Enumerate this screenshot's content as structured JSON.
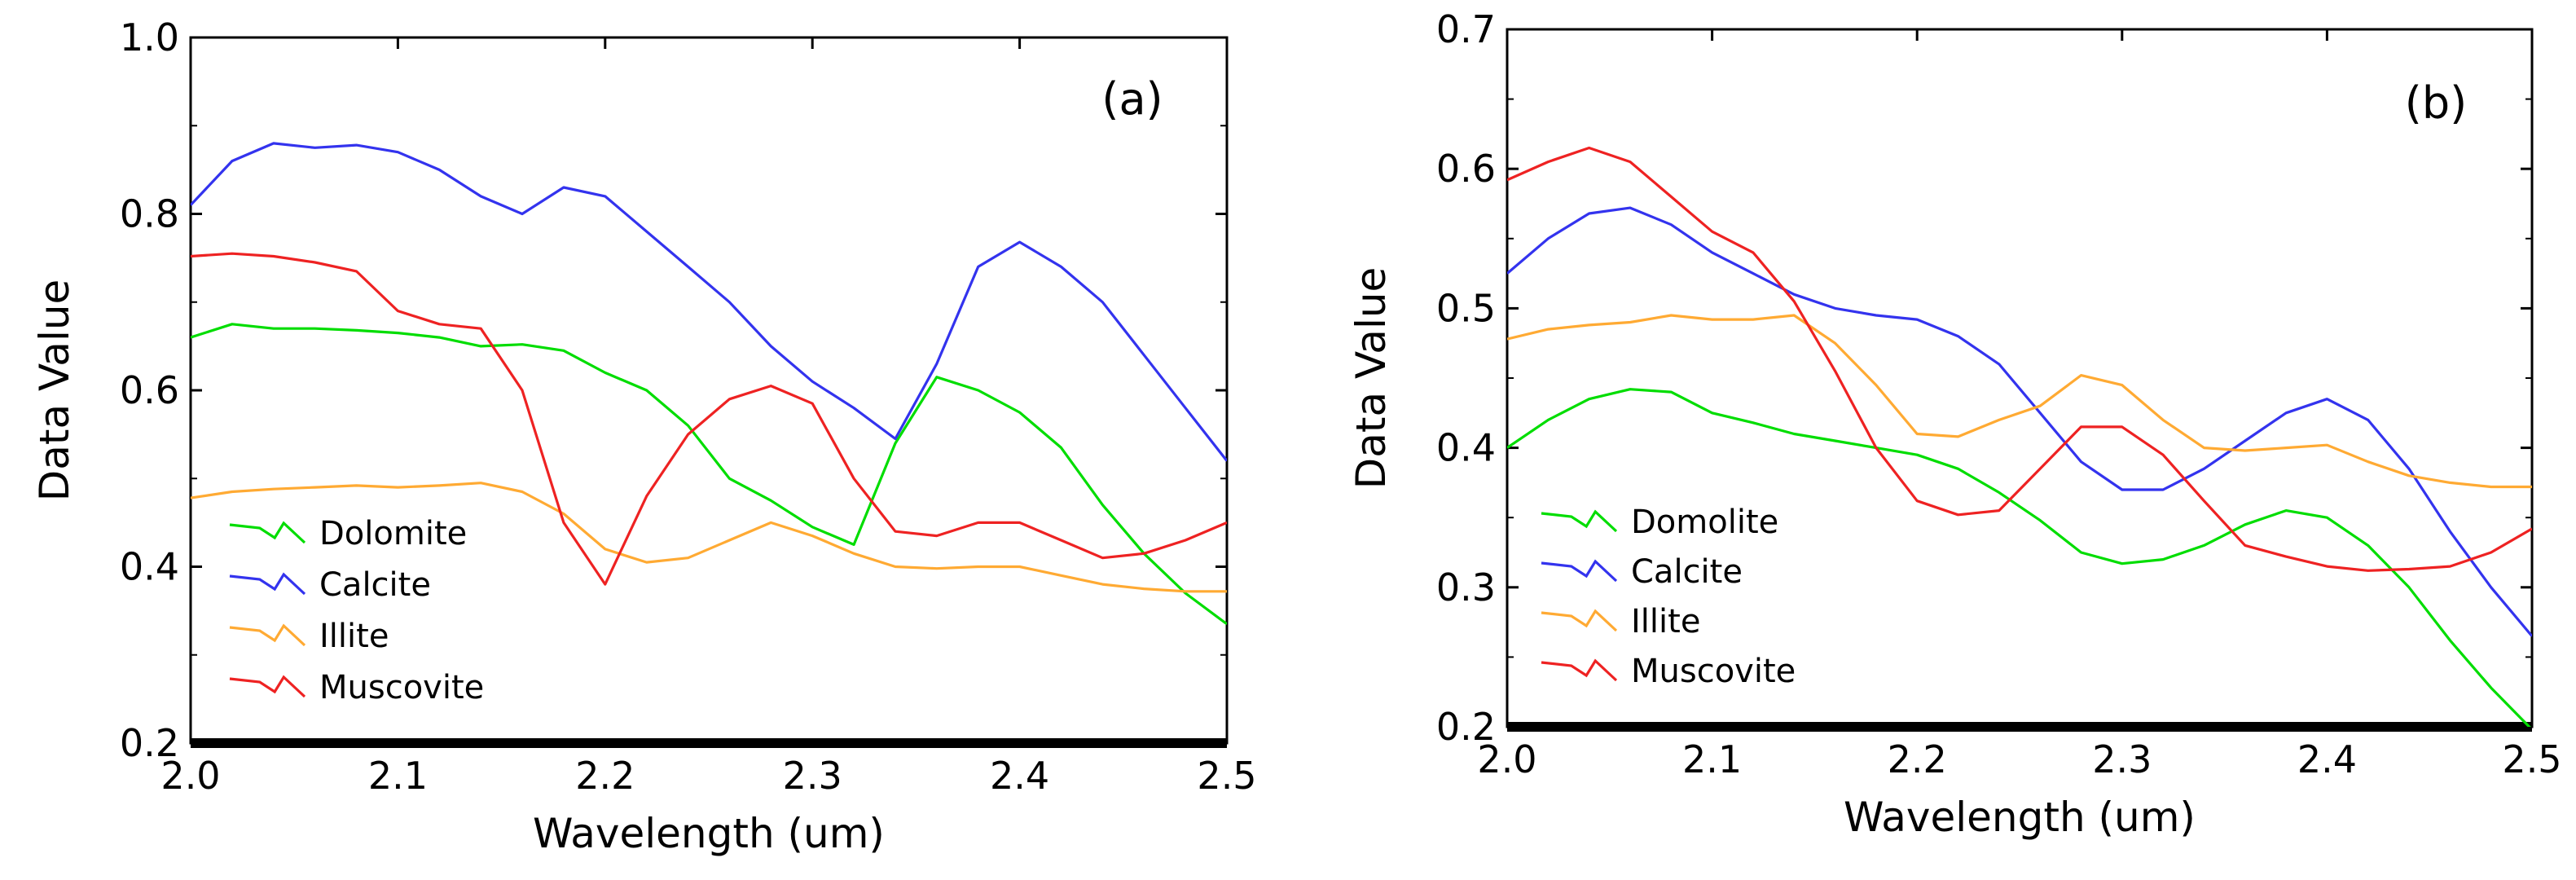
{
  "chart_data": [
    {
      "type": "line",
      "panel_label": "(a)",
      "xlabel": "Wavelength (um)",
      "ylabel": "Data Value",
      "xlim": [
        2.0,
        2.5
      ],
      "ylim": [
        0.2,
        1.0
      ],
      "xticks": [
        2.0,
        2.1,
        2.2,
        2.3,
        2.4,
        2.5
      ],
      "xtick_labels": [
        "2.0",
        "2.1",
        "2.2",
        "2.3",
        "2.4",
        "2.5"
      ],
      "yticks": [
        0.2,
        0.4,
        0.6,
        0.8,
        1.0
      ],
      "ytick_labels": [
        "0.2",
        "0.4",
        "0.6",
        "0.8",
        "1.0"
      ],
      "legend_position": "bottom-left",
      "series": [
        {
          "name": "Dolomite",
          "color": "#00dd00",
          "x": [
            2.0,
            2.02,
            2.04,
            2.06,
            2.08,
            2.1,
            2.12,
            2.14,
            2.16,
            2.18,
            2.2,
            2.22,
            2.24,
            2.26,
            2.28,
            2.3,
            2.32,
            2.34,
            2.36,
            2.38,
            2.4,
            2.42,
            2.44,
            2.46,
            2.48,
            2.5
          ],
          "y": [
            0.66,
            0.675,
            0.67,
            0.67,
            0.668,
            0.665,
            0.66,
            0.65,
            0.652,
            0.645,
            0.62,
            0.6,
            0.56,
            0.5,
            0.475,
            0.445,
            0.425,
            0.54,
            0.615,
            0.6,
            0.575,
            0.535,
            0.47,
            0.415,
            0.37,
            0.335
          ]
        },
        {
          "name": "Calcite",
          "color": "#3333ee",
          "x": [
            2.0,
            2.02,
            2.04,
            2.06,
            2.08,
            2.1,
            2.12,
            2.14,
            2.16,
            2.18,
            2.2,
            2.22,
            2.24,
            2.26,
            2.28,
            2.3,
            2.32,
            2.34,
            2.36,
            2.38,
            2.4,
            2.42,
            2.44,
            2.46,
            2.48,
            2.5
          ],
          "y": [
            0.81,
            0.86,
            0.88,
            0.875,
            0.878,
            0.87,
            0.85,
            0.82,
            0.8,
            0.83,
            0.82,
            0.78,
            0.74,
            0.7,
            0.65,
            0.61,
            0.58,
            0.545,
            0.63,
            0.74,
            0.768,
            0.74,
            0.7,
            0.64,
            0.58,
            0.52
          ]
        },
        {
          "name": "Illite",
          "color": "#ffaa33",
          "x": [
            2.0,
            2.02,
            2.04,
            2.06,
            2.08,
            2.1,
            2.12,
            2.14,
            2.16,
            2.18,
            2.2,
            2.22,
            2.24,
            2.26,
            2.28,
            2.3,
            2.32,
            2.34,
            2.36,
            2.38,
            2.4,
            2.42,
            2.44,
            2.46,
            2.48,
            2.5
          ],
          "y": [
            0.478,
            0.485,
            0.488,
            0.49,
            0.492,
            0.49,
            0.492,
            0.495,
            0.485,
            0.46,
            0.42,
            0.405,
            0.41,
            0.43,
            0.45,
            0.435,
            0.415,
            0.4,
            0.398,
            0.4,
            0.4,
            0.39,
            0.38,
            0.375,
            0.372,
            0.372
          ]
        },
        {
          "name": "Muscovite",
          "color": "#ee2222",
          "x": [
            2.0,
            2.02,
            2.04,
            2.06,
            2.08,
            2.1,
            2.12,
            2.14,
            2.16,
            2.18,
            2.2,
            2.22,
            2.24,
            2.26,
            2.28,
            2.3,
            2.32,
            2.34,
            2.36,
            2.38,
            2.4,
            2.42,
            2.44,
            2.46,
            2.48,
            2.5
          ],
          "y": [
            0.752,
            0.755,
            0.752,
            0.745,
            0.735,
            0.69,
            0.675,
            0.67,
            0.6,
            0.45,
            0.38,
            0.48,
            0.55,
            0.59,
            0.605,
            0.585,
            0.5,
            0.44,
            0.435,
            0.45,
            0.45,
            0.43,
            0.41,
            0.415,
            0.43,
            0.45
          ]
        }
      ]
    },
    {
      "type": "line",
      "panel_label": "(b)",
      "xlabel": "Wavelength (um)",
      "ylabel": "Data Value",
      "xlim": [
        2.0,
        2.5
      ],
      "ylim": [
        0.2,
        0.7
      ],
      "xticks": [
        2.0,
        2.1,
        2.2,
        2.3,
        2.4,
        2.5
      ],
      "xtick_labels": [
        "2.0",
        "2.1",
        "2.2",
        "2.3",
        "2.4",
        "2.5"
      ],
      "yticks": [
        0.2,
        0.3,
        0.4,
        0.5,
        0.6,
        0.7
      ],
      "ytick_labels": [
        "0.2",
        "0.3",
        "0.4",
        "0.5",
        "0.6",
        "0.7"
      ],
      "legend_position": "bottom-left",
      "series": [
        {
          "name": "Domolite",
          "color": "#00dd00",
          "x": [
            2.0,
            2.02,
            2.04,
            2.06,
            2.08,
            2.1,
            2.12,
            2.14,
            2.16,
            2.18,
            2.2,
            2.22,
            2.24,
            2.26,
            2.28,
            2.3,
            2.32,
            2.34,
            2.36,
            2.38,
            2.4,
            2.42,
            2.44,
            2.46,
            2.48,
            2.5
          ],
          "y": [
            0.4,
            0.42,
            0.435,
            0.442,
            0.44,
            0.425,
            0.418,
            0.41,
            0.405,
            0.4,
            0.395,
            0.385,
            0.368,
            0.348,
            0.325,
            0.317,
            0.32,
            0.33,
            0.345,
            0.355,
            0.35,
            0.33,
            0.3,
            0.262,
            0.228,
            0.198
          ]
        },
        {
          "name": "Calcite",
          "color": "#3333ee",
          "x": [
            2.0,
            2.02,
            2.04,
            2.06,
            2.08,
            2.1,
            2.12,
            2.14,
            2.16,
            2.18,
            2.2,
            2.22,
            2.24,
            2.26,
            2.28,
            2.3,
            2.32,
            2.34,
            2.36,
            2.38,
            2.4,
            2.42,
            2.44,
            2.46,
            2.48,
            2.5
          ],
          "y": [
            0.525,
            0.55,
            0.568,
            0.572,
            0.56,
            0.54,
            0.525,
            0.51,
            0.5,
            0.495,
            0.492,
            0.48,
            0.46,
            0.425,
            0.39,
            0.37,
            0.37,
            0.385,
            0.405,
            0.425,
            0.435,
            0.42,
            0.385,
            0.34,
            0.3,
            0.265
          ]
        },
        {
          "name": "Illite",
          "color": "#ffaa33",
          "x": [
            2.0,
            2.02,
            2.04,
            2.06,
            2.08,
            2.1,
            2.12,
            2.14,
            2.16,
            2.18,
            2.2,
            2.22,
            2.24,
            2.26,
            2.28,
            2.3,
            2.32,
            2.34,
            2.36,
            2.38,
            2.4,
            2.42,
            2.44,
            2.46,
            2.48,
            2.5
          ],
          "y": [
            0.478,
            0.485,
            0.488,
            0.49,
            0.495,
            0.492,
            0.492,
            0.495,
            0.475,
            0.445,
            0.41,
            0.408,
            0.42,
            0.43,
            0.452,
            0.445,
            0.42,
            0.4,
            0.398,
            0.4,
            0.402,
            0.39,
            0.38,
            0.375,
            0.372,
            0.372
          ]
        },
        {
          "name": "Muscovite",
          "color": "#ee2222",
          "x": [
            2.0,
            2.02,
            2.04,
            2.06,
            2.08,
            2.1,
            2.12,
            2.14,
            2.16,
            2.18,
            2.2,
            2.22,
            2.24,
            2.26,
            2.28,
            2.3,
            2.32,
            2.34,
            2.36,
            2.38,
            2.4,
            2.42,
            2.44,
            2.46,
            2.48,
            2.5
          ],
          "y": [
            0.592,
            0.605,
            0.615,
            0.605,
            0.58,
            0.555,
            0.54,
            0.505,
            0.455,
            0.4,
            0.362,
            0.352,
            0.355,
            0.385,
            0.415,
            0.415,
            0.395,
            0.362,
            0.33,
            0.322,
            0.315,
            0.312,
            0.313,
            0.315,
            0.325,
            0.342
          ]
        }
      ]
    }
  ]
}
